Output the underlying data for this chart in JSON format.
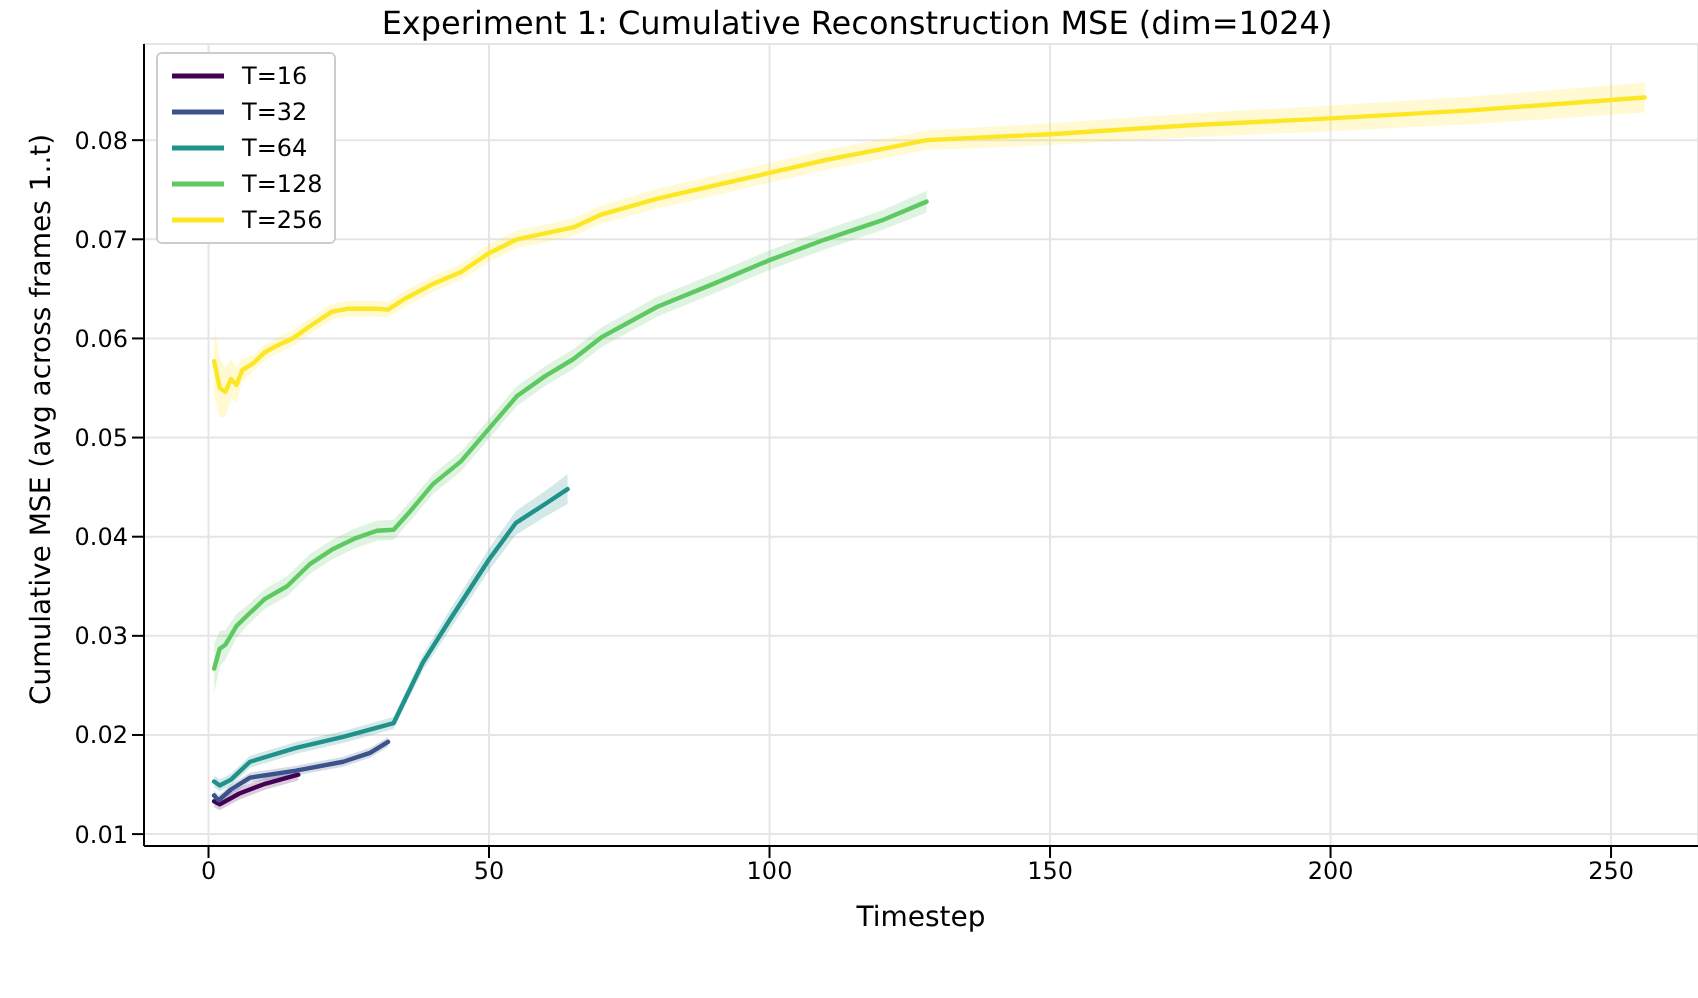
{
  "chart_data": {
    "type": "line",
    "title": "Experiment 1: Cumulative Reconstruction MSE (dim=1024)",
    "xlabel": "Timestep",
    "ylabel": "Cumulative MSE (avg across frames 1..t)",
    "xlim": [
      -11.5,
      265.5
    ],
    "ylim": [
      0.0088,
      0.0897
    ],
    "xticks": [
      0,
      50,
      100,
      150,
      200,
      250
    ],
    "yticks": [
      0.01,
      0.02,
      0.03,
      0.04,
      0.05,
      0.06,
      0.07,
      0.08
    ],
    "grid": true,
    "legend": "top left",
    "line_style": "solid",
    "marker": "none",
    "series": [
      {
        "name": "T=16",
        "color": "#440154",
        "x": [
          1,
          2,
          5.5,
          10.2,
          16
        ],
        "values": [
          0.0133,
          0.013,
          0.0141,
          0.0151,
          0.016
        ],
        "lower": [
          0.0127,
          0.0124,
          0.0135,
          0.0145,
          0.0154
        ],
        "upper": [
          0.0139,
          0.0136,
          0.0147,
          0.0157,
          0.0166
        ]
      },
      {
        "name": "T=32",
        "color": "#3b528b",
        "x": [
          1,
          1.8,
          4,
          7.4,
          15.6,
          24,
          28.8,
          32
        ],
        "values": [
          0.0139,
          0.0134,
          0.0145,
          0.0157,
          0.0164,
          0.0173,
          0.0182,
          0.0193
        ],
        "lower": [
          0.0134,
          0.0129,
          0.014,
          0.0152,
          0.0159,
          0.0168,
          0.0177,
          0.0188
        ],
        "upper": [
          0.0144,
          0.0139,
          0.015,
          0.0162,
          0.0169,
          0.0178,
          0.0187,
          0.0198
        ]
      },
      {
        "name": "T=64",
        "color": "#21918c",
        "x": [
          1,
          2,
          4,
          7.4,
          15.6,
          24,
          31.7,
          33,
          38.2,
          43,
          50,
          54.8,
          60,
          64
        ],
        "values": [
          0.0153,
          0.0149,
          0.0155,
          0.0173,
          0.0187,
          0.0198,
          0.021,
          0.0212,
          0.0273,
          0.0316,
          0.0377,
          0.0414,
          0.0433,
          0.0448
        ],
        "lower": [
          0.0147,
          0.0143,
          0.0149,
          0.0167,
          0.0181,
          0.0192,
          0.0204,
          0.0206,
          0.0265,
          0.0306,
          0.0366,
          0.0402,
          0.042,
          0.0433
        ],
        "upper": [
          0.0159,
          0.0155,
          0.0161,
          0.0179,
          0.0193,
          0.0204,
          0.0216,
          0.0218,
          0.0281,
          0.0326,
          0.0388,
          0.0426,
          0.0446,
          0.0463
        ]
      },
      {
        "name": "T=128",
        "color": "#5ec962",
        "x": [
          1,
          2,
          3,
          5,
          7,
          10,
          14,
          18,
          22,
          26,
          30,
          33,
          36,
          40,
          45,
          50,
          55,
          60,
          65,
          70,
          80,
          90,
          100,
          110,
          120,
          128
        ],
        "values": [
          0.0267,
          0.0287,
          0.0291,
          0.031,
          0.0321,
          0.0337,
          0.035,
          0.0372,
          0.0387,
          0.0398,
          0.0406,
          0.0407,
          0.0426,
          0.0453,
          0.0476,
          0.0509,
          0.0542,
          0.0562,
          0.0579,
          0.0601,
          0.0632,
          0.0655,
          0.0679,
          0.07,
          0.0719,
          0.0738
        ],
        "lower": [
          0.0242,
          0.0269,
          0.0276,
          0.0298,
          0.0311,
          0.0327,
          0.034,
          0.0362,
          0.0377,
          0.0388,
          0.0396,
          0.0397,
          0.0416,
          0.0443,
          0.0466,
          0.0499,
          0.0532,
          0.0552,
          0.0569,
          0.0591,
          0.0622,
          0.0645,
          0.0669,
          0.069,
          0.0709,
          0.0727
        ],
        "upper": [
          0.0292,
          0.0305,
          0.0306,
          0.0322,
          0.0331,
          0.0347,
          0.036,
          0.0382,
          0.0397,
          0.0408,
          0.0416,
          0.0417,
          0.0436,
          0.0463,
          0.0486,
          0.0519,
          0.0552,
          0.0572,
          0.0589,
          0.0611,
          0.0642,
          0.0665,
          0.0689,
          0.071,
          0.0729,
          0.0749
        ]
      },
      {
        "name": "T=256",
        "color": "#fde725",
        "x": [
          1,
          2,
          3,
          4,
          5,
          6,
          8,
          10,
          12,
          15,
          18,
          22,
          25,
          30,
          32,
          35,
          40,
          45,
          50,
          55,
          60,
          65,
          70,
          80,
          90,
          100,
          110,
          120,
          128,
          150,
          175,
          200,
          225,
          256
        ],
        "values": [
          0.0577,
          0.055,
          0.0546,
          0.0559,
          0.0553,
          0.0568,
          0.0575,
          0.0586,
          0.0592,
          0.06,
          0.0612,
          0.0627,
          0.063,
          0.063,
          0.0629,
          0.064,
          0.0655,
          0.0667,
          0.0686,
          0.07,
          0.0706,
          0.0712,
          0.0725,
          0.0741,
          0.0754,
          0.0767,
          0.078,
          0.0791,
          0.08,
          0.0806,
          0.0815,
          0.0822,
          0.083,
          0.0843
        ],
        "lower": [
          0.0542,
          0.052,
          0.0521,
          0.0539,
          0.0535,
          0.0556,
          0.0567,
          0.0578,
          0.0584,
          0.0592,
          0.0604,
          0.0619,
          0.0622,
          0.0622,
          0.0621,
          0.0632,
          0.0647,
          0.0659,
          0.0677,
          0.0691,
          0.0697,
          0.0703,
          0.0716,
          0.0731,
          0.0744,
          0.0757,
          0.077,
          0.0781,
          0.079,
          0.0795,
          0.0803,
          0.0809,
          0.0816,
          0.0828
        ],
        "upper": [
          0.0612,
          0.058,
          0.0571,
          0.0579,
          0.0571,
          0.058,
          0.0583,
          0.0594,
          0.06,
          0.0608,
          0.062,
          0.0635,
          0.0638,
          0.0638,
          0.0637,
          0.0648,
          0.0663,
          0.0675,
          0.0695,
          0.0709,
          0.0715,
          0.0721,
          0.0734,
          0.0751,
          0.0764,
          0.0777,
          0.079,
          0.0801,
          0.081,
          0.0817,
          0.0827,
          0.0835,
          0.0844,
          0.0858
        ]
      }
    ]
  }
}
